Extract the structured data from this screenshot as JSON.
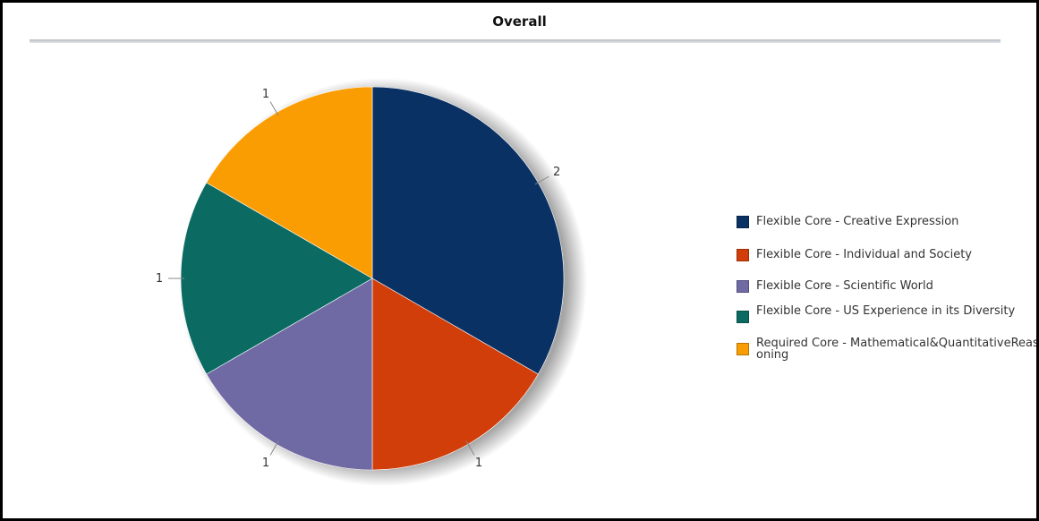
{
  "chart_data": {
    "type": "pie",
    "title": "Overall",
    "slices": [
      {
        "label": "Flexible Core - Creative Expression",
        "value": 2,
        "color": "#0a3163"
      },
      {
        "label": "Flexible Core - Individual and Society",
        "value": 1,
        "color": "#d13e0a"
      },
      {
        "label": "Flexible Core - Scientific World",
        "value": 1,
        "color": "#6f6aa4"
      },
      {
        "label": "Flexible Core - US Experience in its Diversity",
        "value": 1,
        "color": "#0b6b62"
      },
      {
        "label": "Required Core - Mathematical&QuantitativeReasoning",
        "value": 1,
        "color": "#fa9d03"
      }
    ],
    "legend_position": "right",
    "data_labels": true
  }
}
